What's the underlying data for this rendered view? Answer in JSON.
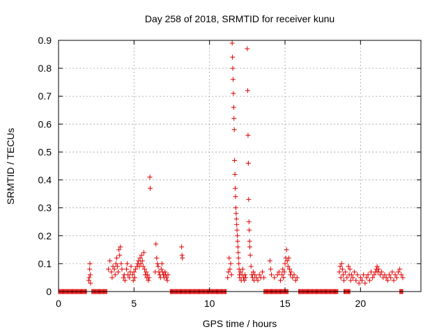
{
  "chart_data": {
    "type": "scatter",
    "title": "Day 258 of 2018, SRMTID for receiver kunu",
    "xlabel": "GPS time / hours",
    "ylabel": "SRMTID / TECUs",
    "xlim": [
      0,
      24
    ],
    "ylim": [
      0,
      0.9
    ],
    "x_ticks": [
      0,
      5,
      10,
      15,
      20
    ],
    "y_ticks": [
      0,
      0.1,
      0.2,
      0.3,
      0.4,
      0.5,
      0.6,
      0.7,
      0.8,
      0.9
    ],
    "x_tick_labels": [
      "0",
      "5",
      "10",
      "15",
      "20"
    ],
    "y_tick_labels": [
      "0",
      "0.1",
      "0.2",
      "0.3",
      "0.4",
      "0.5",
      "0.6",
      "0.7",
      "0.8",
      "0.9"
    ],
    "grid": true,
    "marker": "+",
    "marker_color": "#e00000",
    "zero_band": [
      [
        0,
        1.85
      ],
      [
        2.2,
        3.2
      ],
      [
        7.4,
        11.1
      ],
      [
        13.6,
        15.2
      ],
      [
        15.9,
        18.5
      ],
      [
        18.9,
        19.3
      ],
      [
        22.6,
        22.8
      ]
    ],
    "series": [
      {
        "values": [
          [
            2.0,
            0.04
          ],
          [
            2.03,
            0.05
          ],
          [
            2.06,
            0.08
          ],
          [
            2.08,
            0.1
          ],
          [
            2.1,
            0.06
          ],
          [
            2.12,
            0.03
          ],
          [
            3.3,
            0.08
          ],
          [
            3.4,
            0.11
          ],
          [
            3.5,
            0.07
          ],
          [
            3.55,
            0.05
          ],
          [
            3.6,
            0.09
          ],
          [
            3.7,
            0.08
          ],
          [
            3.75,
            0.06
          ],
          [
            3.8,
            0.1
          ],
          [
            3.85,
            0.12
          ],
          [
            3.9,
            0.09
          ],
          [
            3.95,
            0.07
          ],
          [
            4.0,
            0.15
          ],
          [
            4.05,
            0.13
          ],
          [
            4.1,
            0.16
          ],
          [
            4.15,
            0.1
          ],
          [
            4.2,
            0.08
          ],
          [
            4.3,
            0.05
          ],
          [
            4.35,
            0.06
          ],
          [
            4.4,
            0.04
          ],
          [
            4.5,
            0.08
          ],
          [
            4.55,
            0.1
          ],
          [
            4.6,
            0.06
          ],
          [
            4.7,
            0.05
          ],
          [
            4.75,
            0.07
          ],
          [
            4.8,
            0.09
          ],
          [
            4.9,
            0.06
          ],
          [
            4.95,
            0.04
          ],
          [
            5.0,
            0.07
          ],
          [
            5.05,
            0.05
          ],
          [
            5.1,
            0.08
          ],
          [
            5.2,
            0.09
          ],
          [
            5.25,
            0.1
          ],
          [
            5.3,
            0.11
          ],
          [
            5.35,
            0.09
          ],
          [
            5.4,
            0.12
          ],
          [
            5.45,
            0.1
          ],
          [
            5.5,
            0.13
          ],
          [
            5.55,
            0.11
          ],
          [
            5.6,
            0.09
          ],
          [
            5.65,
            0.14
          ],
          [
            5.7,
            0.08
          ],
          [
            5.75,
            0.06
          ],
          [
            5.8,
            0.07
          ],
          [
            5.85,
            0.05
          ],
          [
            5.9,
            0.06
          ],
          [
            5.95,
            0.04
          ],
          [
            6.0,
            0.05
          ],
          [
            6.05,
            0.41
          ],
          [
            6.07,
            0.37
          ],
          [
            6.4,
            0.07
          ],
          [
            6.45,
            0.17
          ],
          [
            6.5,
            0.12
          ],
          [
            6.55,
            0.1
          ],
          [
            6.6,
            0.09
          ],
          [
            6.65,
            0.07
          ],
          [
            6.7,
            0.06
          ],
          [
            6.75,
            0.05
          ],
          [
            6.8,
            0.08
          ],
          [
            6.85,
            0.1
          ],
          [
            6.9,
            0.07
          ],
          [
            6.95,
            0.06
          ],
          [
            7.0,
            0.05
          ],
          [
            7.05,
            0.07
          ],
          [
            7.1,
            0.06
          ],
          [
            7.15,
            0.05
          ],
          [
            7.2,
            0.04
          ],
          [
            7.25,
            0.06
          ],
          [
            8.15,
            0.16
          ],
          [
            8.18,
            0.13
          ],
          [
            8.2,
            0.12
          ],
          [
            11.2,
            0.05
          ],
          [
            11.25,
            0.07
          ],
          [
            11.3,
            0.12
          ],
          [
            11.35,
            0.08
          ],
          [
            11.4,
            0.1
          ],
          [
            11.45,
            0.06
          ],
          [
            11.5,
            0.89
          ],
          [
            11.52,
            0.84
          ],
          [
            11.54,
            0.8
          ],
          [
            11.56,
            0.76
          ],
          [
            11.58,
            0.71
          ],
          [
            11.6,
            0.66
          ],
          [
            11.62,
            0.62
          ],
          [
            11.64,
            0.58
          ],
          [
            11.66,
            0.47
          ],
          [
            11.68,
            0.42
          ],
          [
            11.7,
            0.37
          ],
          [
            11.72,
            0.34
          ],
          [
            11.74,
            0.3
          ],
          [
            11.76,
            0.28
          ],
          [
            11.78,
            0.26
          ],
          [
            11.8,
            0.24
          ],
          [
            11.82,
            0.22
          ],
          [
            11.84,
            0.2
          ],
          [
            11.86,
            0.18
          ],
          [
            11.88,
            0.16
          ],
          [
            11.9,
            0.14
          ],
          [
            11.92,
            0.12
          ],
          [
            11.94,
            0.1
          ],
          [
            11.96,
            0.08
          ],
          [
            11.98,
            0.06
          ],
          [
            12.0,
            0.05
          ],
          [
            12.05,
            0.07
          ],
          [
            12.1,
            0.04
          ],
          [
            12.15,
            0.06
          ],
          [
            12.2,
            0.08
          ],
          [
            12.25,
            0.05
          ],
          [
            12.3,
            0.04
          ],
          [
            12.35,
            0.06
          ],
          [
            12.4,
            0.05
          ],
          [
            12.5,
            0.87
          ],
          [
            12.53,
            0.72
          ],
          [
            12.55,
            0.56
          ],
          [
            12.57,
            0.46
          ],
          [
            12.59,
            0.33
          ],
          [
            12.61,
            0.25
          ],
          [
            12.63,
            0.22
          ],
          [
            12.65,
            0.18
          ],
          [
            12.67,
            0.16
          ],
          [
            12.7,
            0.13
          ],
          [
            12.75,
            0.09
          ],
          [
            12.8,
            0.06
          ],
          [
            12.85,
            0.05
          ],
          [
            12.9,
            0.07
          ],
          [
            12.95,
            0.04
          ],
          [
            13.0,
            0.06
          ],
          [
            13.1,
            0.05
          ],
          [
            13.2,
            0.04
          ],
          [
            13.3,
            0.06
          ],
          [
            13.4,
            0.05
          ],
          [
            13.5,
            0.07
          ],
          [
            13.6,
            0.05
          ],
          [
            14.0,
            0.11
          ],
          [
            14.05,
            0.08
          ],
          [
            14.1,
            0.06
          ],
          [
            14.3,
            0.05
          ],
          [
            14.5,
            0.06
          ],
          [
            14.6,
            0.07
          ],
          [
            14.7,
            0.04
          ],
          [
            14.8,
            0.06
          ],
          [
            14.85,
            0.08
          ],
          [
            14.9,
            0.05
          ],
          [
            14.95,
            0.07
          ],
          [
            15.0,
            0.1
          ],
          [
            15.05,
            0.12
          ],
          [
            15.1,
            0.15
          ],
          [
            15.15,
            0.11
          ],
          [
            15.2,
            0.09
          ],
          [
            15.25,
            0.12
          ],
          [
            15.3,
            0.08
          ],
          [
            15.35,
            0.06
          ],
          [
            15.4,
            0.07
          ],
          [
            15.5,
            0.05
          ],
          [
            15.6,
            0.06
          ],
          [
            15.7,
            0.04
          ],
          [
            15.8,
            0.05
          ],
          [
            18.6,
            0.07
          ],
          [
            18.65,
            0.09
          ],
          [
            18.7,
            0.05
          ],
          [
            18.75,
            0.1
          ],
          [
            18.8,
            0.08
          ],
          [
            18.85,
            0.06
          ],
          [
            18.9,
            0.04
          ],
          [
            19.0,
            0.07
          ],
          [
            19.1,
            0.05
          ],
          [
            19.2,
            0.09
          ],
          [
            19.25,
            0.06
          ],
          [
            19.3,
            0.08
          ],
          [
            19.35,
            0.04
          ],
          [
            19.4,
            0.06
          ],
          [
            19.5,
            0.05
          ],
          [
            19.6,
            0.07
          ],
          [
            19.7,
            0.04
          ],
          [
            19.8,
            0.06
          ],
          [
            19.9,
            0.03
          ],
          [
            20.0,
            0.05
          ],
          [
            20.1,
            0.04
          ],
          [
            20.2,
            0.06
          ],
          [
            20.3,
            0.03
          ],
          [
            20.4,
            0.05
          ],
          [
            20.5,
            0.06
          ],
          [
            20.6,
            0.04
          ],
          [
            20.7,
            0.07
          ],
          [
            20.8,
            0.05
          ],
          [
            20.9,
            0.06
          ],
          [
            21.0,
            0.07
          ],
          [
            21.05,
            0.08
          ],
          [
            21.1,
            0.09
          ],
          [
            21.15,
            0.07
          ],
          [
            21.2,
            0.08
          ],
          [
            21.3,
            0.06
          ],
          [
            21.4,
            0.07
          ],
          [
            21.5,
            0.05
          ],
          [
            21.6,
            0.06
          ],
          [
            21.7,
            0.05
          ],
          [
            21.8,
            0.04
          ],
          [
            21.9,
            0.06
          ],
          [
            22.0,
            0.05
          ],
          [
            22.1,
            0.07
          ],
          [
            22.2,
            0.04
          ],
          [
            22.3,
            0.06
          ],
          [
            22.4,
            0.05
          ],
          [
            22.5,
            0.07
          ],
          [
            22.6,
            0.08
          ],
          [
            22.7,
            0.06
          ],
          [
            22.8,
            0.05
          ]
        ]
      }
    ]
  }
}
